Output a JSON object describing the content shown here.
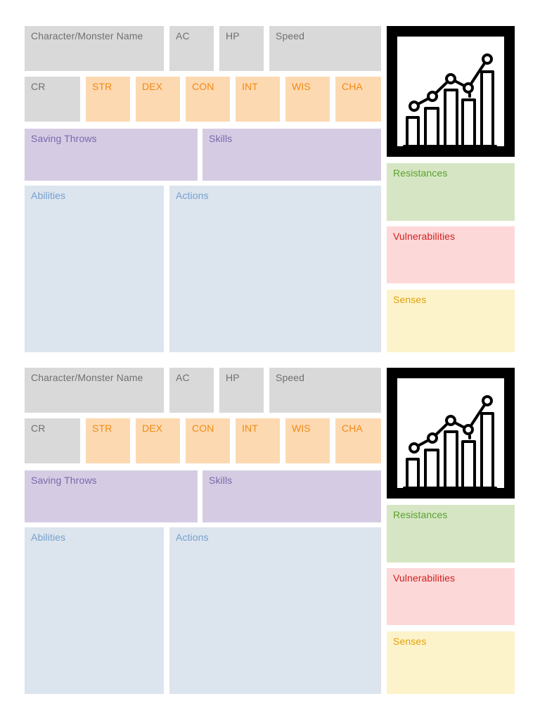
{
  "sheets": [
    {
      "name_label": "Character/Monster Name",
      "ac_label": "AC",
      "hp_label": "HP",
      "speed_label": "Speed",
      "cr_label": "CR",
      "str_label": "STR",
      "dex_label": "DEX",
      "con_label": "CON",
      "int_label": "INT",
      "wis_label": "WIS",
      "cha_label": "CHA",
      "saving_throws_label": "Saving Throws",
      "skills_label": "Skills",
      "abilities_label": "Abilities",
      "actions_label": "Actions",
      "resistances_label": "Resistances",
      "vulnerabilities_label": "Vulnerabilities",
      "senses_label": "Senses",
      "icon": "bar-chart-growth-icon"
    },
    {
      "name_label": "Character/Monster Name",
      "ac_label": "AC",
      "hp_label": "HP",
      "speed_label": "Speed",
      "cr_label": "CR",
      "str_label": "STR",
      "dex_label": "DEX",
      "con_label": "CON",
      "int_label": "INT",
      "wis_label": "WIS",
      "cha_label": "CHA",
      "saving_throws_label": "Saving Throws",
      "skills_label": "Skills",
      "abilities_label": "Abilities",
      "actions_label": "Actions",
      "resistances_label": "Resistances",
      "vulnerabilities_label": "Vulnerabilities",
      "senses_label": "Senses",
      "icon": "bar-chart-growth-icon"
    }
  ],
  "colors": {
    "stat_gray": "#d9d9d9",
    "ability_orange": "#fdd9b1",
    "saves_purple": "#d5cce4",
    "features_blue": "#dce4ee",
    "resistances_green": "#d6e6c4",
    "vulnerabilities_red": "#fdd8d8",
    "senses_yellow": "#fdf3cb"
  }
}
